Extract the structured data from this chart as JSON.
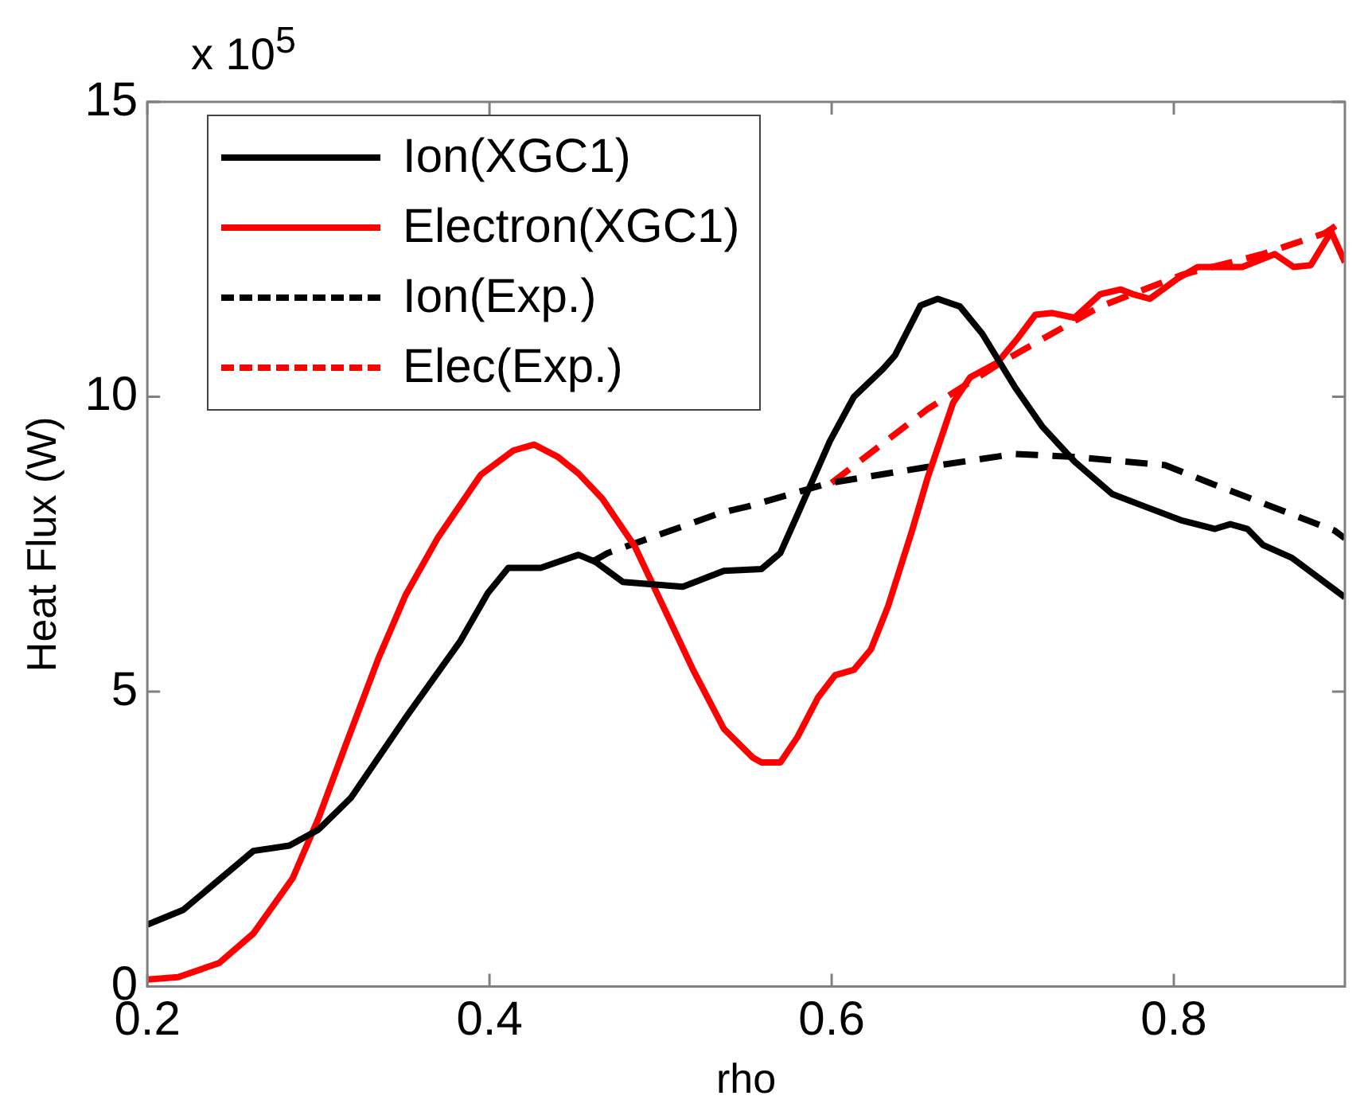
{
  "chart_data": {
    "type": "line",
    "xlabel": "rho",
    "ylabel": "Heat Flux (W)",
    "annotations": [
      "x 10$^{5}$"
    ],
    "xlim": [
      0.2,
      0.9
    ],
    "xticks": [
      0.2,
      0.4,
      0.6,
      0.8
    ],
    "ylim": [
      0,
      15
    ],
    "yticks": [
      0,
      5,
      10,
      15
    ],
    "grid": false,
    "legend": "top left",
    "marker": "none",
    "series": [
      {
        "name": "Ion(XGC1)",
        "color": "#000000",
        "line_style": "solid",
        "x": [
          0.2,
          0.221,
          0.262,
          0.283,
          0.3,
          0.319,
          0.351,
          0.383,
          0.399,
          0.411,
          0.43,
          0.452,
          0.462,
          0.478,
          0.513,
          0.537,
          0.559,
          0.57,
          0.58,
          0.599,
          0.613,
          0.63,
          0.637,
          0.652,
          0.662,
          0.675,
          0.688,
          0.707,
          0.723,
          0.742,
          0.764,
          0.783,
          0.805,
          0.824,
          0.833,
          0.843,
          0.852,
          0.869,
          0.9
        ],
        "values": [
          1.05,
          1.3,
          2.3,
          2.39,
          2.66,
          3.2,
          4.56,
          5.86,
          6.67,
          7.1,
          7.1,
          7.32,
          7.2,
          6.86,
          6.78,
          7.05,
          7.08,
          7.35,
          8.0,
          9.25,
          10.0,
          10.47,
          10.7,
          11.55,
          11.66,
          11.53,
          11.07,
          10.17,
          9.5,
          8.9,
          8.35,
          8.14,
          7.9,
          7.76,
          7.84,
          7.76,
          7.49,
          7.27,
          6.6
        ]
      },
      {
        "name": "Electron(XGC1)",
        "color": "#ff0000",
        "line_style": "solid",
        "x": [
          0.2,
          0.218,
          0.242,
          0.262,
          0.285,
          0.3,
          0.316,
          0.335,
          0.351,
          0.37,
          0.395,
          0.414,
          0.426,
          0.44,
          0.452,
          0.466,
          0.485,
          0.5,
          0.519,
          0.537,
          0.554,
          0.559,
          0.57,
          0.58,
          0.592,
          0.602,
          0.613,
          0.623,
          0.633,
          0.647,
          0.656,
          0.671,
          0.681,
          0.697,
          0.709,
          0.719,
          0.729,
          0.742,
          0.757,
          0.769,
          0.776,
          0.786,
          0.802,
          0.814,
          0.84,
          0.859,
          0.87,
          0.88,
          0.892,
          0.9
        ],
        "values": [
          0.12,
          0.16,
          0.4,
          0.9,
          1.84,
          2.85,
          4.1,
          5.56,
          6.64,
          7.62,
          8.68,
          9.09,
          9.19,
          8.98,
          8.7,
          8.27,
          7.46,
          6.54,
          5.37,
          4.37,
          3.88,
          3.8,
          3.8,
          4.23,
          4.9,
          5.28,
          5.37,
          5.72,
          6.45,
          7.73,
          8.62,
          9.9,
          10.33,
          10.58,
          11.0,
          11.39,
          11.42,
          11.34,
          11.74,
          11.82,
          11.74,
          11.66,
          12.0,
          12.2,
          12.2,
          12.42,
          12.2,
          12.23,
          12.8,
          12.28
        ]
      },
      {
        "name": "Ion(Exp.)",
        "color": "#000000",
        "line_style": "dashed",
        "x": [
          0.46,
          0.469,
          0.535,
          0.551,
          0.599,
          0.656,
          0.707,
          0.742,
          0.795,
          0.821,
          0.894,
          0.9
        ],
        "values": [
          7.2,
          7.35,
          8.03,
          8.14,
          8.54,
          8.81,
          9.03,
          8.98,
          8.84,
          8.54,
          7.73,
          7.6
        ]
      },
      {
        "name": "Elec(Exp.)",
        "color": "#ff0000",
        "line_style": "dashed",
        "x": [
          0.6,
          0.656,
          0.7,
          0.757,
          0.805,
          0.852,
          0.888,
          0.9
        ],
        "values": [
          8.54,
          9.79,
          10.6,
          11.53,
          12.07,
          12.42,
          12.77,
          13.0
        ]
      }
    ]
  }
}
